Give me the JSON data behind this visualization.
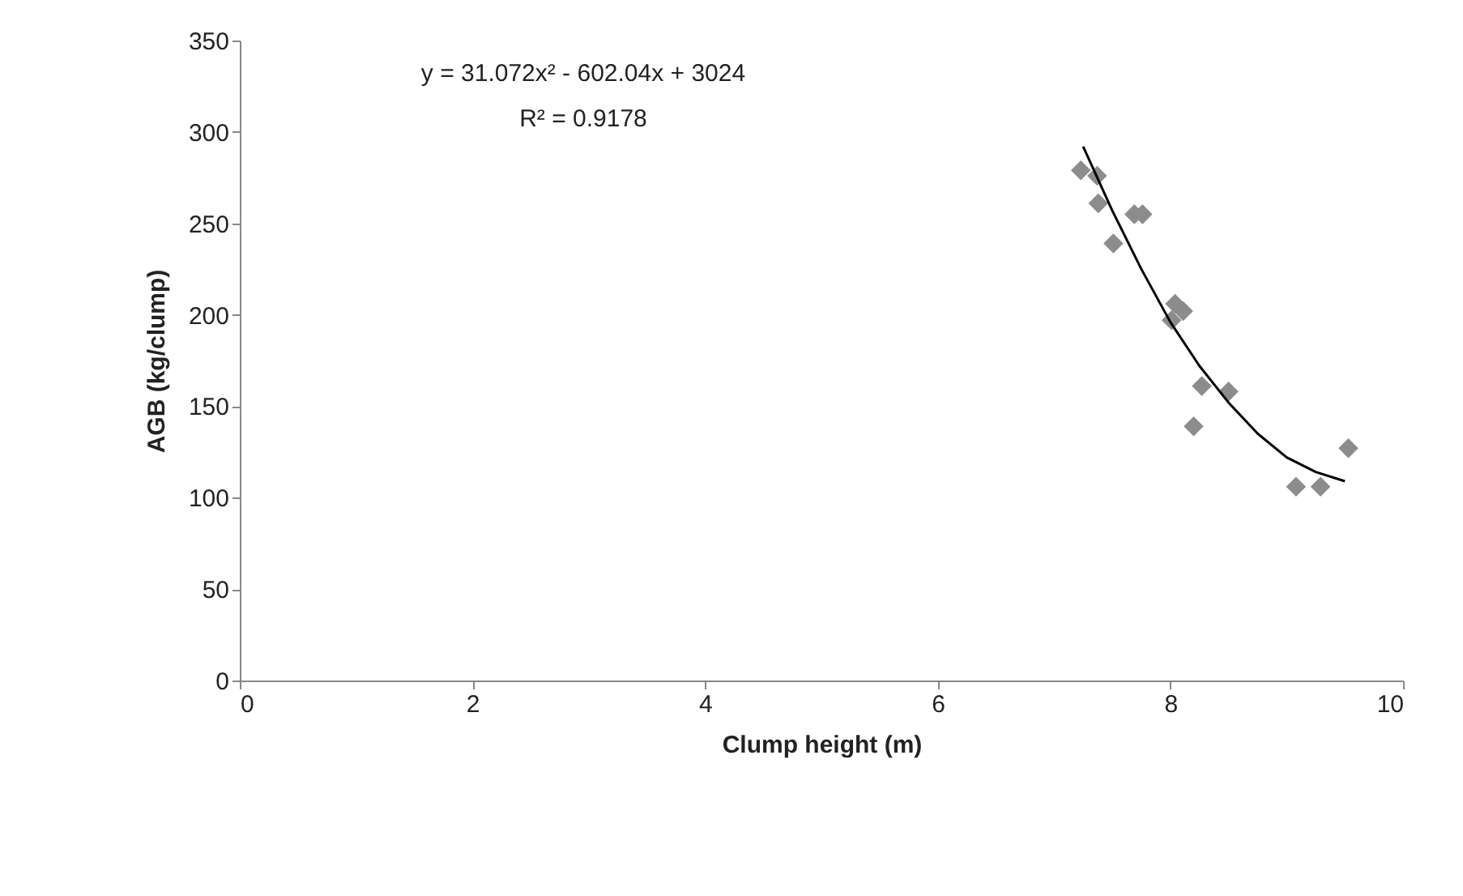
{
  "chart_data": {
    "type": "scatter",
    "xlabel": "Clump height (m)",
    "ylabel": "AGB (kg/clump)",
    "xlim": [
      0,
      10
    ],
    "xticks": [
      0,
      2,
      4,
      6,
      8,
      10
    ],
    "ylim": [
      0,
      350
    ],
    "yticks": [
      0,
      50,
      100,
      150,
      200,
      250,
      300,
      350
    ],
    "grid": false,
    "marker": "diamond",
    "annotations": [
      "y = 31.072x² - 602.04x + 3024",
      "R² = 0.9178"
    ],
    "series": [
      {
        "type": "scatter",
        "color": "#8c8c8c",
        "x": [
          7.23,
          7.37,
          7.38,
          7.69,
          7.76,
          7.51,
          8.04,
          8.11,
          8.01,
          8.27,
          8.5,
          8.2,
          9.08,
          9.29,
          9.53
        ],
        "values": [
          279,
          276,
          261,
          255,
          255,
          239,
          206,
          202,
          197,
          161,
          158,
          139,
          106,
          106,
          127
        ]
      },
      {
        "type": "line",
        "color": "#000000",
        "line_style": "solid",
        "marker": "none",
        "x": [
          7.25,
          7.5,
          7.75,
          8,
          8.25,
          8.5,
          8.75,
          9,
          9.25,
          9.5
        ],
        "values": [
          292,
          257,
          225,
          196,
          172,
          152,
          135,
          122,
          114,
          109
        ]
      }
    ]
  }
}
